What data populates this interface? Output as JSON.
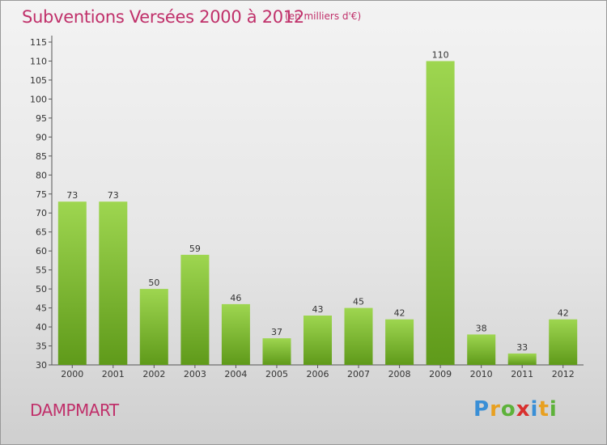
{
  "header": {
    "title": "Subventions Versées 2000 à 2012",
    "unit": "(en milliers d'€)"
  },
  "footer": {
    "commune": "DAMPMART",
    "logo": [
      "P",
      "r",
      "o",
      "x",
      "i",
      "t",
      "i"
    ],
    "logo_colors": [
      "#3a8fd6",
      "#e8a020",
      "#5db23a",
      "#d8302e",
      "#3a8fd6",
      "#e8a020",
      "#5db23a"
    ]
  },
  "colors": {
    "title": "#c0306a",
    "bar_top": "#9ed650",
    "bar_bottom": "#5f9a1a"
  },
  "chart_data": {
    "type": "bar",
    "title": "Subventions Versées 2000 à 2012",
    "subtitle": "(en milliers d'€)",
    "categories": [
      "2000",
      "2001",
      "2002",
      "2003",
      "2004",
      "2005",
      "2006",
      "2007",
      "2008",
      "2009",
      "2010",
      "2011",
      "2012"
    ],
    "values": [
      73,
      73,
      50,
      59,
      46,
      37,
      43,
      45,
      42,
      110,
      38,
      33,
      42
    ],
    "ylim": [
      30,
      115
    ],
    "yticks": [
      30,
      35,
      40,
      45,
      50,
      55,
      60,
      65,
      70,
      75,
      80,
      85,
      90,
      95,
      100,
      105,
      110,
      115
    ],
    "grid": false,
    "legend": "none"
  }
}
